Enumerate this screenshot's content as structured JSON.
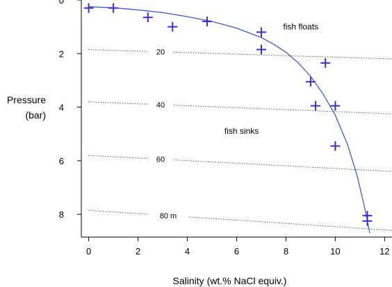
{
  "chart_data": {
    "type": "scatter",
    "xlabel": "Salinity (wt.% NaCl equiv.)",
    "ylabel": [
      "Pressure",
      "(bar)"
    ],
    "xlim": [
      -0.3,
      12.3
    ],
    "ylim": [
      0,
      8.85
    ],
    "y_inverted": true,
    "x_ticks": [
      0,
      2,
      4,
      6,
      8,
      10,
      12
    ],
    "y_ticks": [
      0,
      2,
      4,
      6,
      8
    ],
    "grid": false,
    "points": [
      {
        "x": 0.0,
        "y": 0.3
      },
      {
        "x": 1.0,
        "y": 0.3
      },
      {
        "x": 2.4,
        "y": 0.65
      },
      {
        "x": 3.4,
        "y": 1.0
      },
      {
        "x": 4.8,
        "y": 0.8
      },
      {
        "x": 7.0,
        "y": 1.2
      },
      {
        "x": 7.0,
        "y": 1.85
      },
      {
        "x": 9.6,
        "y": 2.35
      },
      {
        "x": 9.0,
        "y": 3.05
      },
      {
        "x": 9.2,
        "y": 3.95
      },
      {
        "x": 10.0,
        "y": 3.95
      },
      {
        "x": 10.0,
        "y": 5.45
      },
      {
        "x": 11.3,
        "y": 8.05
      },
      {
        "x": 11.3,
        "y": 8.25
      }
    ],
    "curve": [
      {
        "x": 0.0,
        "y": 0.25
      },
      {
        "x": 1.0,
        "y": 0.29
      },
      {
        "x": 2.0,
        "y": 0.37
      },
      {
        "x": 3.0,
        "y": 0.47
      },
      {
        "x": 4.0,
        "y": 0.62
      },
      {
        "x": 5.0,
        "y": 0.8
      },
      {
        "x": 6.0,
        "y": 1.05
      },
      {
        "x": 7.0,
        "y": 1.4
      },
      {
        "x": 7.5,
        "y": 1.65
      },
      {
        "x": 8.0,
        "y": 1.95
      },
      {
        "x": 8.5,
        "y": 2.35
      },
      {
        "x": 9.0,
        "y": 2.85
      },
      {
        "x": 9.5,
        "y": 3.5
      },
      {
        "x": 10.0,
        "y": 4.3
      },
      {
        "x": 10.5,
        "y": 5.4
      },
      {
        "x": 10.9,
        "y": 6.6
      },
      {
        "x": 11.2,
        "y": 7.8
      },
      {
        "x": 11.4,
        "y": 8.7
      }
    ],
    "depth_lines": [
      {
        "label": "20",
        "y_start": 1.85,
        "y_end": 2.2
      },
      {
        "label": "40",
        "y_start": 3.8,
        "y_end": 4.25
      },
      {
        "label": "60",
        "y_start": 5.8,
        "y_end": 6.4
      },
      {
        "label": "80 m",
        "y_start": 7.85,
        "y_end": 8.6
      }
    ],
    "annotations": [
      {
        "text": "fish floats",
        "x": 8.6,
        "y": 1.1
      },
      {
        "text": "fish sinks",
        "x": 6.2,
        "y": 5.0
      }
    ],
    "colors": {
      "series": "#3a2fc4",
      "curve": "#3b5bd9",
      "depth_line": "#555555"
    }
  }
}
